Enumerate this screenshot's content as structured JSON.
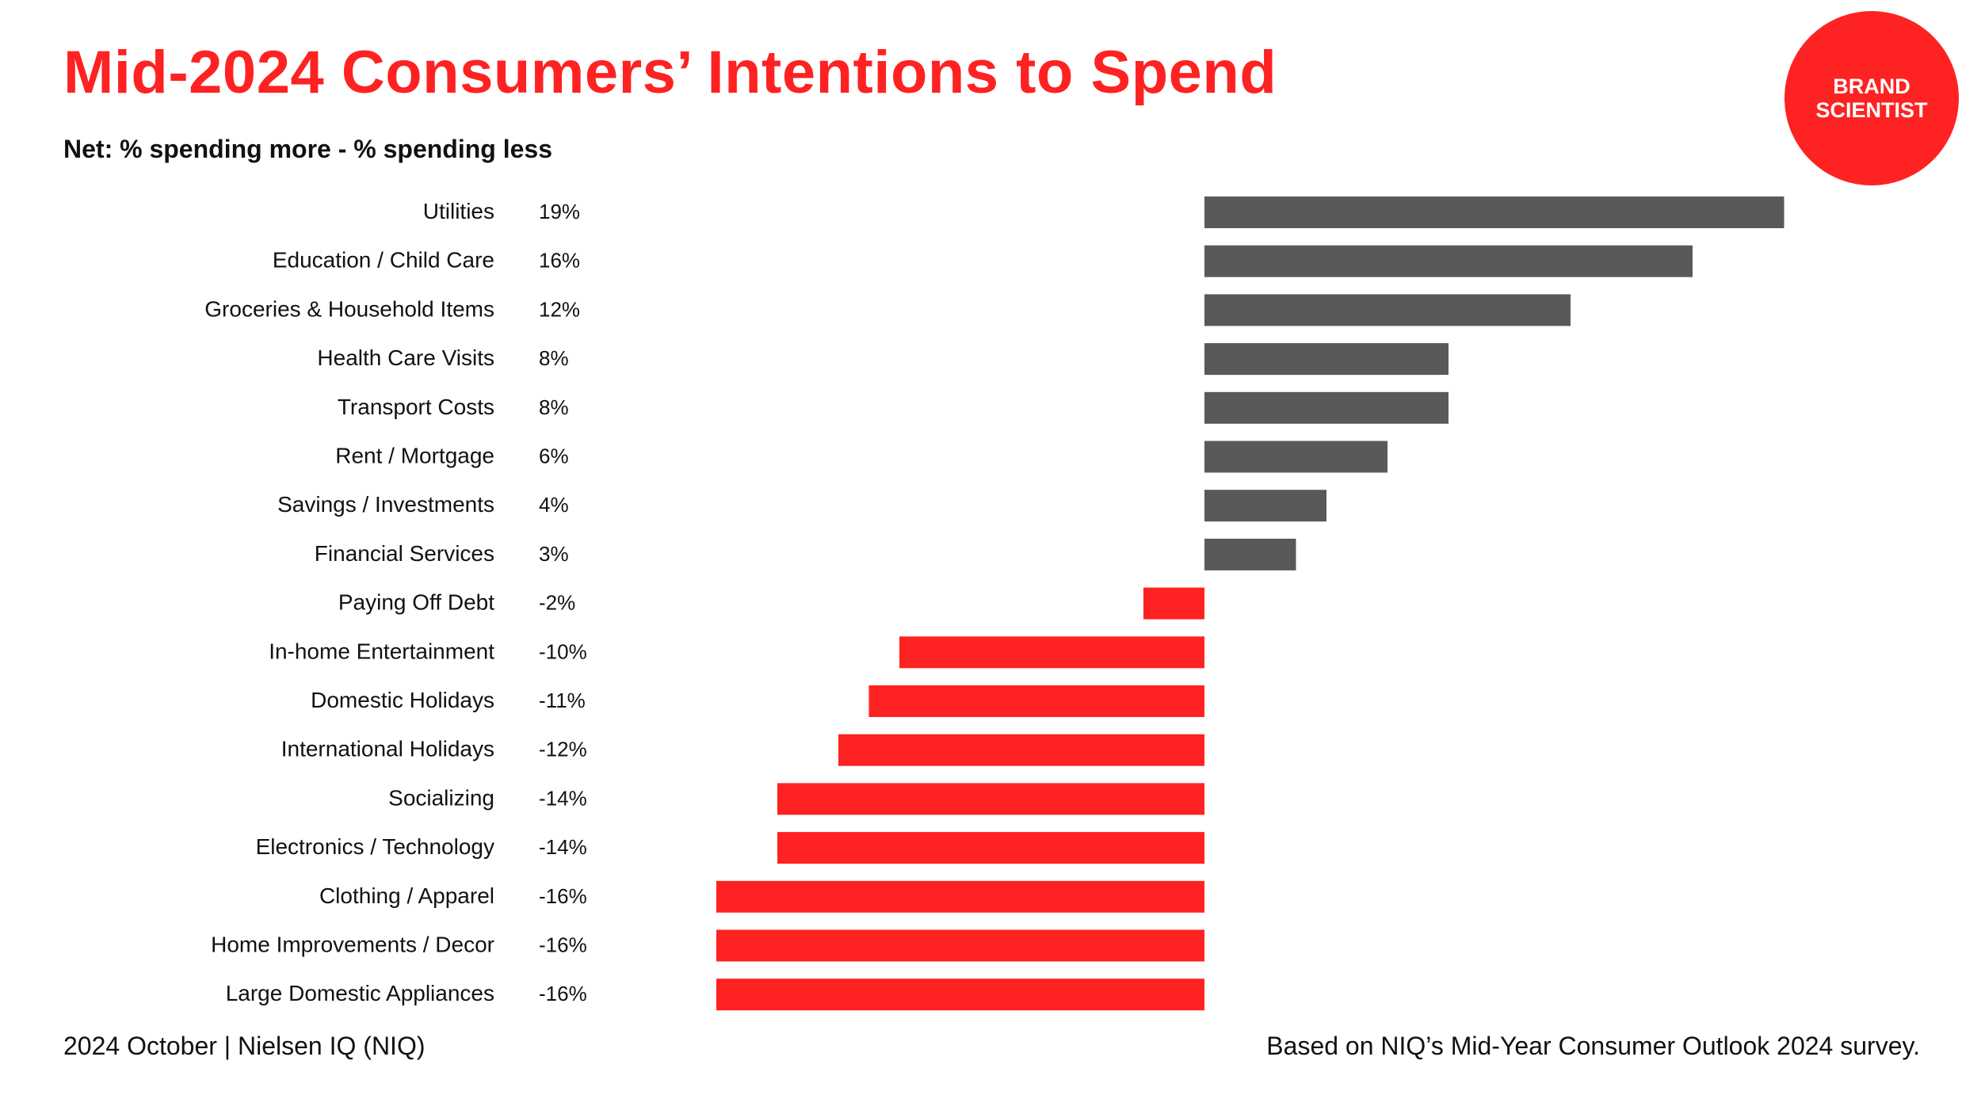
{
  "header": {
    "title": "Mid-2024 Consumers’ Intentions to Spend",
    "subtitle": "Net: % spending more - % spending less"
  },
  "logo": {
    "line1": "BRAND",
    "line2": "SCIENTIST"
  },
  "footer": {
    "left": "2024 October  |  Nielsen IQ (NIQ)",
    "right": "Based on NIQ’s Mid-Year Consumer Outlook 2024 survey."
  },
  "colors": {
    "brand_red": "#fe2222",
    "positive_bar": "#595959",
    "negative_bar": "#fe2222",
    "text": "#111111"
  },
  "chart_data": {
    "type": "bar",
    "orientation": "horizontal",
    "title": "Mid-2024 Consumers’ Intentions to Spend",
    "subtitle": "Net: % spending more - % spending less",
    "xlabel": "",
    "ylabel": "",
    "xlim": [
      -16,
      19
    ],
    "grid": false,
    "categories": [
      "Utilities",
      "Education / Child Care",
      "Groceries & Household Items",
      "Health Care Visits",
      "Transport Costs",
      "Rent / Mortgage",
      "Savings / Investments",
      "Financial Services",
      "Paying Off Debt",
      "In-home Entertainment",
      "Domestic Holidays",
      "International Holidays",
      "Socializing",
      "Electronics / Technology",
      "Clothing / Apparel",
      "Home Improvements / Decor",
      "Large Domestic Appliances"
    ],
    "values": [
      19,
      16,
      12,
      8,
      8,
      6,
      4,
      3,
      -2,
      -10,
      -11,
      -12,
      -14,
      -14,
      -16,
      -16,
      -16
    ],
    "value_labels": [
      "19%",
      "16%",
      "12%",
      "8%",
      "8%",
      "6%",
      "4%",
      "3%",
      "-2%",
      "-10%",
      "-11%",
      "-12%",
      "-14%",
      "-14%",
      "-16%",
      "-16%",
      "-16%"
    ]
  }
}
